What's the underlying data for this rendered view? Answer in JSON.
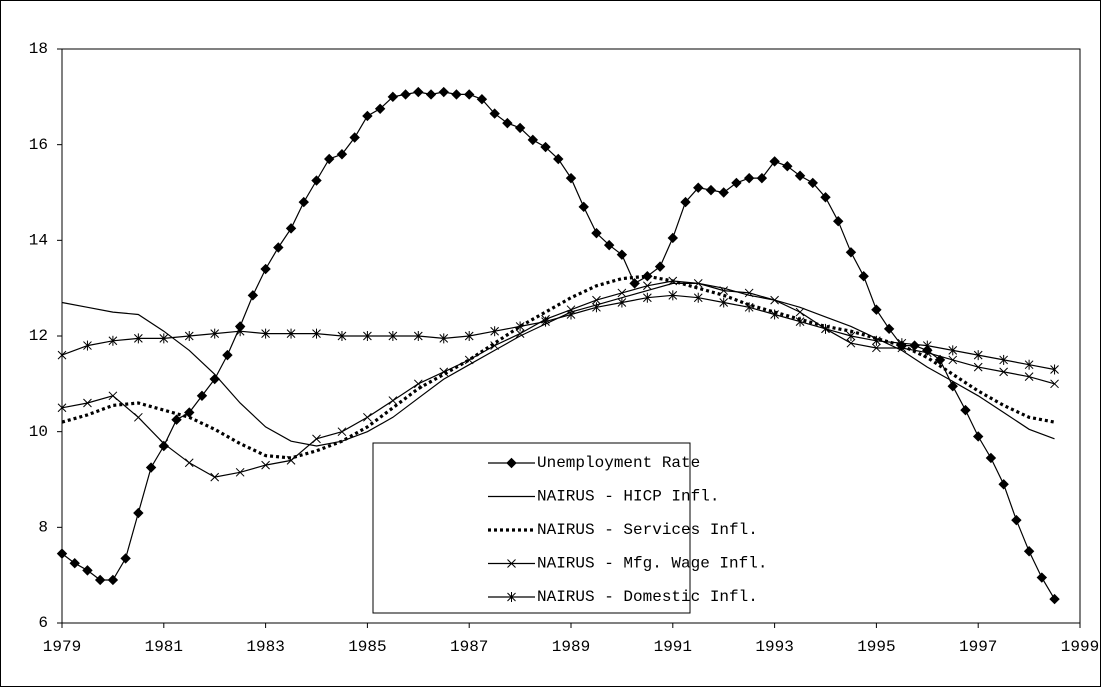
{
  "chart_data": {
    "type": "line",
    "xlim": [
      1979,
      1999
    ],
    "xticks": [
      1979,
      1981,
      1983,
      1985,
      1987,
      1989,
      1991,
      1993,
      1995,
      1997,
      1999
    ],
    "ylim": [
      6,
      18
    ],
    "yticks": [
      6,
      8,
      10,
      12,
      14,
      16,
      18
    ],
    "legend": "lower center",
    "series": [
      {
        "name": "Unemployment Rate",
        "color": "#000000",
        "marker": "diamond",
        "dash": "solid",
        "x": [
          1979,
          1979.25,
          1979.5,
          1979.75,
          1980,
          1980.25,
          1980.5,
          1980.75,
          1981,
          1981.25,
          1981.5,
          1981.75,
          1982,
          1982.25,
          1982.5,
          1982.75,
          1983,
          1983.25,
          1983.5,
          1983.75,
          1984,
          1984.25,
          1984.5,
          1984.75,
          1985,
          1985.25,
          1985.5,
          1985.75,
          1986,
          1986.25,
          1986.5,
          1986.75,
          1987,
          1987.25,
          1987.5,
          1987.75,
          1988,
          1988.25,
          1988.5,
          1988.75,
          1989,
          1989.25,
          1989.5,
          1989.75,
          1990,
          1990.25,
          1990.5,
          1990.75,
          1991,
          1991.25,
          1991.5,
          1991.75,
          1992,
          1992.25,
          1992.5,
          1992.75,
          1993,
          1993.25,
          1993.5,
          1993.75,
          1994,
          1994.25,
          1994.5,
          1994.75,
          1995,
          1995.25,
          1995.5,
          1995.75,
          1996,
          1996.25,
          1996.5,
          1996.75,
          1997,
          1997.25,
          1997.5,
          1997.75,
          1998,
          1998.25,
          1998.5
        ],
        "values": [
          7.45,
          7.25,
          7.1,
          6.9,
          6.9,
          7.35,
          8.3,
          9.25,
          9.7,
          10.25,
          10.4,
          10.75,
          11.1,
          11.6,
          12.2,
          12.85,
          13.4,
          13.85,
          14.25,
          14.8,
          15.25,
          15.7,
          15.8,
          16.15,
          16.6,
          16.75,
          17.0,
          17.05,
          17.1,
          17.05,
          17.1,
          17.05,
          17.05,
          16.95,
          16.65,
          16.45,
          16.35,
          16.1,
          15.95,
          15.7,
          15.3,
          14.7,
          14.15,
          13.9,
          13.7,
          13.1,
          13.25,
          13.45,
          14.05,
          14.8,
          15.1,
          15.05,
          15.0,
          15.2,
          15.3,
          15.3,
          15.65,
          15.55,
          15.35,
          15.2,
          14.9,
          14.4,
          13.75,
          13.25,
          12.55,
          12.15,
          11.8,
          11.8,
          11.7,
          11.5,
          10.95,
          10.45,
          9.9,
          9.45,
          8.9,
          8.15,
          7.5,
          6.95,
          6.5
        ]
      },
      {
        "name": "NAIRUS - HICP Infl.",
        "color": "#000000",
        "marker": "none",
        "dash": "solid",
        "x": [
          1979,
          1979.5,
          1980,
          1980.5,
          1981,
          1981.5,
          1982,
          1982.5,
          1983,
          1983.5,
          1984,
          1984.5,
          1985,
          1985.5,
          1986,
          1986.5,
          1987,
          1987.5,
          1988,
          1988.5,
          1989,
          1989.5,
          1990,
          1990.5,
          1991,
          1991.5,
          1992,
          1992.5,
          1993,
          1993.5,
          1994,
          1994.5,
          1995,
          1995.5,
          1996,
          1996.5,
          1997,
          1997.5,
          1998,
          1998.5
        ],
        "values": [
          12.7,
          12.6,
          12.5,
          12.45,
          12.1,
          11.7,
          11.2,
          10.6,
          10.1,
          9.8,
          9.7,
          9.8,
          10.0,
          10.3,
          10.7,
          11.1,
          11.4,
          11.7,
          12.0,
          12.25,
          12.5,
          12.65,
          12.8,
          12.95,
          13.1,
          13.1,
          13.0,
          12.85,
          12.75,
          12.6,
          12.4,
          12.2,
          11.95,
          11.7,
          11.35,
          11.05,
          10.75,
          10.4,
          10.05,
          9.85
        ]
      },
      {
        "name": "NAIRUS - Services Infl.",
        "color": "#000000",
        "marker": "none",
        "dash": "dotted",
        "x": [
          1979,
          1979.5,
          1980,
          1980.5,
          1981,
          1981.5,
          1982,
          1982.5,
          1983,
          1983.5,
          1984,
          1984.5,
          1985,
          1985.5,
          1986,
          1986.5,
          1987,
          1987.5,
          1988,
          1988.5,
          1989,
          1989.5,
          1990,
          1990.5,
          1991,
          1991.5,
          1992,
          1992.5,
          1993,
          1993.5,
          1994,
          1994.5,
          1995,
          1995.5,
          1996,
          1996.5,
          1997,
          1997.5,
          1998,
          1998.5
        ],
        "values": [
          10.2,
          10.35,
          10.55,
          10.6,
          10.45,
          10.3,
          10.05,
          9.75,
          9.5,
          9.45,
          9.6,
          9.8,
          10.1,
          10.5,
          10.9,
          11.2,
          11.5,
          11.85,
          12.2,
          12.5,
          12.8,
          13.05,
          13.2,
          13.25,
          13.15,
          13.0,
          12.85,
          12.65,
          12.5,
          12.35,
          12.2,
          12.1,
          11.95,
          11.8,
          11.55,
          11.2,
          10.85,
          10.55,
          10.3,
          10.2
        ]
      },
      {
        "name": "NAIRUS - Mfg. Wage Infl.",
        "color": "#000000",
        "marker": "x",
        "dash": "solid",
        "x": [
          1979,
          1979.5,
          1980,
          1980.5,
          1981,
          1981.5,
          1982,
          1982.5,
          1983,
          1983.5,
          1984,
          1984.5,
          1985,
          1985.5,
          1986,
          1986.5,
          1987,
          1987.5,
          1988,
          1988.5,
          1989,
          1989.5,
          1990,
          1990.5,
          1991,
          1991.5,
          1992,
          1992.5,
          1993,
          1993.5,
          1994,
          1994.5,
          1995,
          1995.5,
          1996,
          1996.5,
          1997,
          1997.5,
          1998,
          1998.5
        ],
        "values": [
          10.5,
          10.6,
          10.75,
          10.3,
          9.75,
          9.35,
          9.05,
          9.15,
          9.3,
          9.4,
          9.85,
          10.0,
          10.3,
          10.65,
          11.0,
          11.25,
          11.5,
          11.8,
          12.05,
          12.35,
          12.55,
          12.75,
          12.9,
          13.05,
          13.15,
          13.1,
          12.95,
          12.9,
          12.75,
          12.5,
          12.15,
          11.85,
          11.75,
          11.75,
          11.65,
          11.5,
          11.35,
          11.25,
          11.15,
          11.0
        ]
      },
      {
        "name": "NAIRUS - Domestic Infl.",
        "color": "#000000",
        "marker": "asterisk",
        "dash": "solid",
        "x": [
          1979,
          1979.5,
          1980,
          1980.5,
          1981,
          1981.5,
          1982,
          1982.5,
          1983,
          1983.5,
          1984,
          1984.5,
          1985,
          1985.5,
          1986,
          1986.5,
          1987,
          1987.5,
          1988,
          1988.5,
          1989,
          1989.5,
          1990,
          1990.5,
          1991,
          1991.5,
          1992,
          1992.5,
          1993,
          1993.5,
          1994,
          1994.5,
          1995,
          1995.5,
          1996,
          1996.5,
          1997,
          1997.5,
          1998,
          1998.5
        ],
        "values": [
          11.6,
          11.8,
          11.9,
          11.95,
          11.95,
          12.0,
          12.05,
          12.1,
          12.05,
          12.05,
          12.05,
          12.0,
          12.0,
          12.0,
          12.0,
          11.95,
          12.0,
          12.1,
          12.2,
          12.3,
          12.45,
          12.6,
          12.7,
          12.8,
          12.85,
          12.8,
          12.7,
          12.6,
          12.45,
          12.3,
          12.15,
          12.0,
          11.9,
          11.85,
          11.8,
          11.7,
          11.6,
          11.5,
          11.4,
          11.3
        ]
      }
    ]
  }
}
